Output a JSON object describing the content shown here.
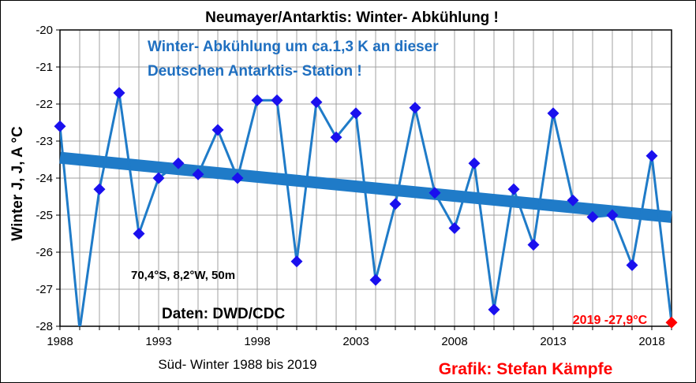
{
  "chart_data": {
    "type": "line",
    "title": "Neumayer/Antarktis:  Winter- Abkühlung !",
    "xlabel": "Süd- Winter 1988 bis 2019",
    "ylabel": "Winter J, J, A °C",
    "xlim": [
      1988,
      2019
    ],
    "ylim": [
      -28,
      -20
    ],
    "x_ticks": [
      1988,
      1993,
      1998,
      2003,
      2008,
      2013,
      2018
    ],
    "x_tick_labels": [
      "1988",
      "1993",
      "1998",
      "2003",
      "2008",
      "2013",
      "2018"
    ],
    "y_ticks": [
      -20,
      -21,
      -22,
      -23,
      -24,
      -25,
      -26,
      -27,
      -28
    ],
    "y_tick_labels": [
      "-20",
      "-21",
      "-22",
      "-23",
      "-24",
      "-25",
      "-26",
      "-27",
      "-28"
    ],
    "grid": true,
    "series": [
      {
        "color": "#1f7bc8",
        "marker": "diamond",
        "marker_color": "#1a10ee",
        "x": [
          1988,
          1989,
          1990,
          1991,
          1992,
          1993,
          1994,
          1995,
          1996,
          1997,
          1998,
          1999,
          2000,
          2001,
          2002,
          2003,
          2004,
          2005,
          2006,
          2007,
          2008,
          2009,
          2010,
          2011,
          2012,
          2013,
          2014,
          2015,
          2016,
          2017,
          2018,
          2019
        ],
        "values": [
          -22.6,
          -28.1,
          -24.3,
          -21.7,
          -25.5,
          -24.0,
          -23.6,
          -23.9,
          -22.7,
          -24.0,
          -21.9,
          -21.9,
          -26.25,
          -21.95,
          -22.9,
          -22.25,
          -26.75,
          -24.7,
          -22.1,
          -24.4,
          -25.35,
          -23.6,
          -27.55,
          -24.3,
          -25.8,
          -22.25,
          -24.6,
          -25.05,
          -25.0,
          -26.35,
          -23.4,
          -27.9
        ]
      }
    ],
    "trend": {
      "color": "#1f7bc8",
      "x": [
        1988,
        2019
      ],
      "values": [
        -23.45,
        -25.05
      ]
    },
    "annotations": {
      "subtitle_line1": "Winter- Abkühlung um ca.1,3 K an dieser",
      "subtitle_line2": "Deutschen Antarktis- Station !",
      "station": "70,4°S, 8,2°W, 50m",
      "source": "Daten: DWD/CDC",
      "credit": "Grafik: Stefan Kämpfe",
      "last_value_label": "2019 -27,9°C",
      "last_value_color": "#ff0000"
    }
  }
}
